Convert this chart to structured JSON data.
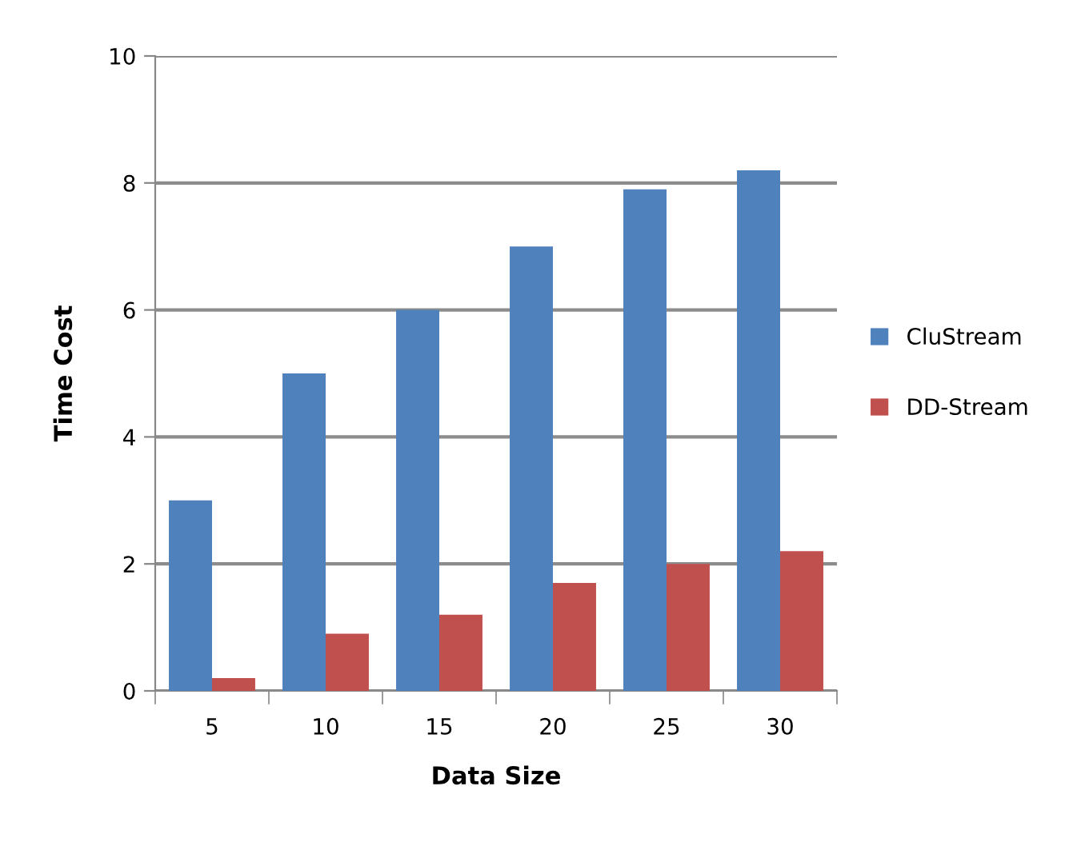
{
  "chart_data": {
    "type": "bar",
    "xlabel": "Data Size",
    "ylabel": "Time Cost",
    "categories": [
      "5",
      "10",
      "15",
      "20",
      "25",
      "30"
    ],
    "series": [
      {
        "name": "CluStream",
        "color": "#4f81bd",
        "values": [
          3,
          5,
          6,
          7,
          7.9,
          8.2
        ]
      },
      {
        "name": "DD-Stream",
        "color": "#c0504d",
        "values": [
          0.2,
          0.9,
          1.2,
          1.7,
          2.0,
          2.2
        ]
      }
    ],
    "ylim": [
      0,
      10
    ],
    "yticks": [
      0,
      2,
      4,
      6,
      8,
      10
    ],
    "grid": "y",
    "legend": "right"
  }
}
